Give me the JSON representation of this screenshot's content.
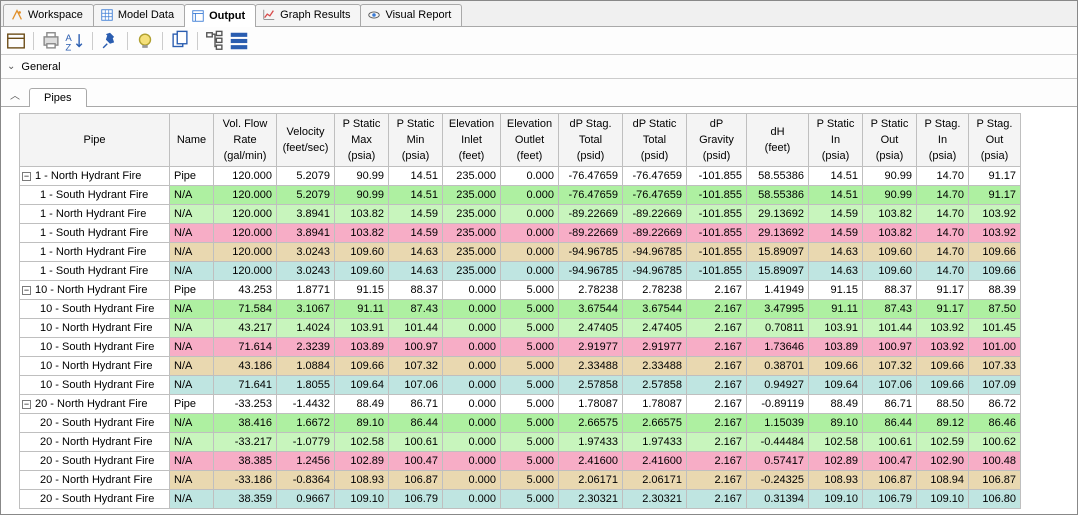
{
  "topTabs": [
    {
      "label": "Workspace",
      "iconColor": "#e08f2a"
    },
    {
      "label": "Model Data",
      "iconColor": "#3a7bd5"
    },
    {
      "label": "Output",
      "iconColor": "#3a7bd5",
      "active": true
    },
    {
      "label": "Graph Results",
      "iconColor": "#d84a4a"
    },
    {
      "label": "Visual Report",
      "iconColor": "#555"
    }
  ],
  "sections": {
    "general": "General",
    "pipes": "Pipes"
  },
  "columns": [
    {
      "h1": "Pipe",
      "h2": ""
    },
    {
      "h1": "Name",
      "h2": ""
    },
    {
      "h1": "Vol. Flow",
      "h1b": "Rate",
      "h2": "(gal/min)"
    },
    {
      "h1": "Velocity",
      "h2": "(feet/sec)"
    },
    {
      "h1": "P Static",
      "h1b": "Max",
      "h2": "(psia)"
    },
    {
      "h1": "P Static",
      "h1b": "Min",
      "h2": "(psia)"
    },
    {
      "h1": "Elevation",
      "h1b": "Inlet",
      "h2": "(feet)"
    },
    {
      "h1": "Elevation",
      "h1b": "Outlet",
      "h2": "(feet)"
    },
    {
      "h1": "dP Stag.",
      "h1b": "Total",
      "h2": "(psid)"
    },
    {
      "h1": "dP Static",
      "h1b": "Total",
      "h2": "(psid)"
    },
    {
      "h1": "dP",
      "h1b": "Gravity",
      "h2": "(psid)"
    },
    {
      "h1": "dH",
      "h2": "(feet)"
    },
    {
      "h1": "P Static",
      "h1b": "In",
      "h2": "(psia)"
    },
    {
      "h1": "P Static",
      "h1b": "Out",
      "h2": "(psia)"
    },
    {
      "h1": "P Stag.",
      "h1b": "In",
      "h2": "(psia)"
    },
    {
      "h1": "P Stag.",
      "h1b": "Out",
      "h2": "(psia)"
    }
  ],
  "rowColors": {
    "plain": "",
    "green": "c-green",
    "green2": "c-green2",
    "pink": "c-pink",
    "tan": "c-tan",
    "teal": "c-teal"
  },
  "rows": [
    {
      "exp": "-",
      "label": "1 - North Hydrant Fire",
      "name": "Pipe",
      "cls": "plain",
      "v": [
        "120.000",
        "5.2079",
        "90.99",
        "14.51",
        "235.000",
        "0.000",
        "-76.47659",
        "-76.47659",
        "-101.855",
        "58.55386",
        "14.51",
        "90.99",
        "14.70",
        "91.17"
      ]
    },
    {
      "label": "1 - South Hydrant Fire",
      "name": "N/A",
      "cls": "green",
      "v": [
        "120.000",
        "5.2079",
        "90.99",
        "14.51",
        "235.000",
        "0.000",
        "-76.47659",
        "-76.47659",
        "-101.855",
        "58.55386",
        "14.51",
        "90.99",
        "14.70",
        "91.17"
      ]
    },
    {
      "label": "1 - North Hydrant Fire",
      "name": "N/A",
      "cls": "green2",
      "v": [
        "120.000",
        "3.8941",
        "103.82",
        "14.59",
        "235.000",
        "0.000",
        "-89.22669",
        "-89.22669",
        "-101.855",
        "29.13692",
        "14.59",
        "103.82",
        "14.70",
        "103.92"
      ]
    },
    {
      "label": "1 - South Hydrant Fire",
      "name": "N/A",
      "cls": "pink",
      "v": [
        "120.000",
        "3.8941",
        "103.82",
        "14.59",
        "235.000",
        "0.000",
        "-89.22669",
        "-89.22669",
        "-101.855",
        "29.13692",
        "14.59",
        "103.82",
        "14.70",
        "103.92"
      ]
    },
    {
      "label": "1 - North Hydrant Fire",
      "name": "N/A",
      "cls": "tan",
      "v": [
        "120.000",
        "3.0243",
        "109.60",
        "14.63",
        "235.000",
        "0.000",
        "-94.96785",
        "-94.96785",
        "-101.855",
        "15.89097",
        "14.63",
        "109.60",
        "14.70",
        "109.66"
      ]
    },
    {
      "label": "1 - South Hydrant Fire",
      "name": "N/A",
      "cls": "teal",
      "v": [
        "120.000",
        "3.0243",
        "109.60",
        "14.63",
        "235.000",
        "0.000",
        "-94.96785",
        "-94.96785",
        "-101.855",
        "15.89097",
        "14.63",
        "109.60",
        "14.70",
        "109.66"
      ]
    },
    {
      "exp": "-",
      "label": "10 - North Hydrant Fire",
      "name": "Pipe",
      "cls": "plain",
      "v": [
        "43.253",
        "1.8771",
        "91.15",
        "88.37",
        "0.000",
        "5.000",
        "2.78238",
        "2.78238",
        "2.167",
        "1.41949",
        "91.15",
        "88.37",
        "91.17",
        "88.39"
      ]
    },
    {
      "label": "10 - South Hydrant Fire",
      "name": "N/A",
      "cls": "green",
      "v": [
        "71.584",
        "3.1067",
        "91.11",
        "87.43",
        "0.000",
        "5.000",
        "3.67544",
        "3.67544",
        "2.167",
        "3.47995",
        "91.11",
        "87.43",
        "91.17",
        "87.50"
      ]
    },
    {
      "label": "10 - North Hydrant Fire",
      "name": "N/A",
      "cls": "green2",
      "v": [
        "43.217",
        "1.4024",
        "103.91",
        "101.44",
        "0.000",
        "5.000",
        "2.47405",
        "2.47405",
        "2.167",
        "0.70811",
        "103.91",
        "101.44",
        "103.92",
        "101.45"
      ]
    },
    {
      "label": "10 - South Hydrant Fire",
      "name": "N/A",
      "cls": "pink",
      "v": [
        "71.614",
        "2.3239",
        "103.89",
        "100.97",
        "0.000",
        "5.000",
        "2.91977",
        "2.91977",
        "2.167",
        "1.73646",
        "103.89",
        "100.97",
        "103.92",
        "101.00"
      ]
    },
    {
      "label": "10 - North Hydrant Fire",
      "name": "N/A",
      "cls": "tan",
      "v": [
        "43.186",
        "1.0884",
        "109.66",
        "107.32",
        "0.000",
        "5.000",
        "2.33488",
        "2.33488",
        "2.167",
        "0.38701",
        "109.66",
        "107.32",
        "109.66",
        "107.33"
      ]
    },
    {
      "label": "10 - South Hydrant Fire",
      "name": "N/A",
      "cls": "teal",
      "v": [
        "71.641",
        "1.8055",
        "109.64",
        "107.06",
        "0.000",
        "5.000",
        "2.57858",
        "2.57858",
        "2.167",
        "0.94927",
        "109.64",
        "107.06",
        "109.66",
        "107.09"
      ]
    },
    {
      "exp": "-",
      "label": "20 - North Hydrant Fire",
      "name": "Pipe",
      "cls": "plain",
      "v": [
        "-33.253",
        "-1.4432",
        "88.49",
        "86.71",
        "0.000",
        "5.000",
        "1.78087",
        "1.78087",
        "2.167",
        "-0.89119",
        "88.49",
        "86.71",
        "88.50",
        "86.72"
      ]
    },
    {
      "label": "20 - South Hydrant Fire",
      "name": "N/A",
      "cls": "green",
      "v": [
        "38.416",
        "1.6672",
        "89.10",
        "86.44",
        "0.000",
        "5.000",
        "2.66575",
        "2.66575",
        "2.167",
        "1.15039",
        "89.10",
        "86.44",
        "89.12",
        "86.46"
      ]
    },
    {
      "label": "20 - North Hydrant Fire",
      "name": "N/A",
      "cls": "green2",
      "v": [
        "-33.217",
        "-1.0779",
        "102.58",
        "100.61",
        "0.000",
        "5.000",
        "1.97433",
        "1.97433",
        "2.167",
        "-0.44484",
        "102.58",
        "100.61",
        "102.59",
        "100.62"
      ]
    },
    {
      "label": "20 - South Hydrant Fire",
      "name": "N/A",
      "cls": "pink",
      "v": [
        "38.385",
        "1.2456",
        "102.89",
        "100.47",
        "0.000",
        "5.000",
        "2.41600",
        "2.41600",
        "2.167",
        "0.57417",
        "102.89",
        "100.47",
        "102.90",
        "100.48"
      ]
    },
    {
      "label": "20 - North Hydrant Fire",
      "name": "N/A",
      "cls": "tan",
      "v": [
        "-33.186",
        "-0.8364",
        "108.93",
        "106.87",
        "0.000",
        "5.000",
        "2.06171",
        "2.06171",
        "2.167",
        "-0.24325",
        "108.93",
        "106.87",
        "108.94",
        "106.87"
      ]
    },
    {
      "label": "20 - South Hydrant Fire",
      "name": "N/A",
      "cls": "teal",
      "v": [
        "38.359",
        "0.9667",
        "109.10",
        "106.79",
        "0.000",
        "5.000",
        "2.30321",
        "2.30321",
        "2.167",
        "0.31394",
        "109.10",
        "106.79",
        "109.10",
        "106.80"
      ]
    }
  ]
}
